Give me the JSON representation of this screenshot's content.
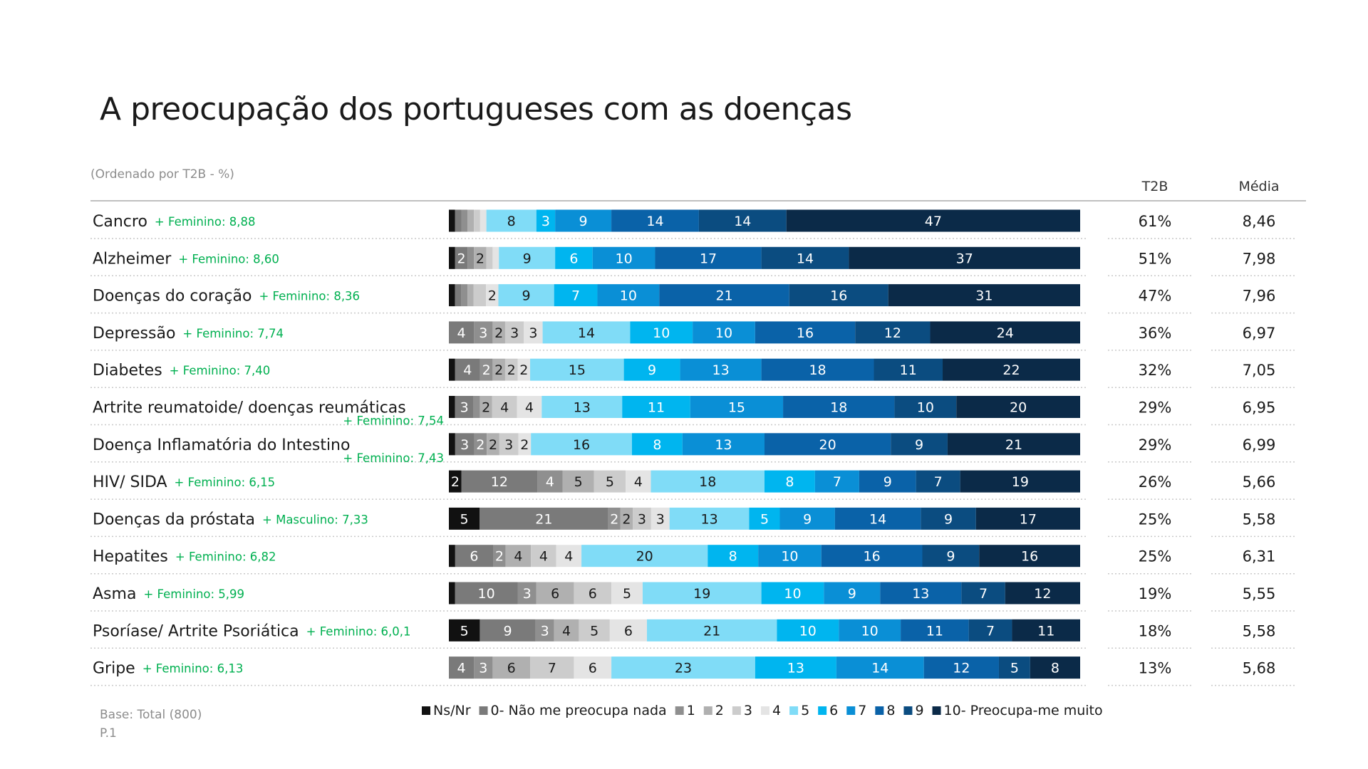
{
  "title": "A preocupação dos portugueses com as doenças",
  "subtitle": "(Ordenado por T2B - %)",
  "columns": {
    "t2b": "T2B",
    "media": "Média"
  },
  "footer": {
    "base": "Base: Total (800)",
    "question": "P.1"
  },
  "colors": {
    "green": "#00b050",
    "category": [
      "#111111",
      "#7a7a7a",
      "#8f8f8f",
      "#b0b0b0",
      "#cccccc",
      "#e4e4e4",
      "#80dcf7",
      "#00b5ef",
      "#0a8fd6",
      "#0a62a8",
      "#0b4c80",
      "#0b2a48"
    ]
  },
  "chart_data": {
    "type": "bar",
    "orientation": "horizontal",
    "stacked": true,
    "unit": "%",
    "categories": [
      "Ns/Nr",
      "0- Não me preocupa nada",
      "1",
      "2",
      "3",
      "4",
      "5",
      "6",
      "7",
      "8",
      "9",
      "10- Preocupa-me muito"
    ],
    "legend_position": "bottom",
    "rows": [
      {
        "label": "Cancro",
        "note": "+ Feminino: 8,88",
        "note_wrap": false,
        "t2b": "61%",
        "media": "8,46",
        "values": [
          1,
          1,
          1,
          1,
          1,
          1,
          8,
          3,
          9,
          14,
          14,
          47
        ],
        "labels": [
          "",
          "",
          "",
          "",
          "",
          "",
          "8",
          "3",
          "9",
          "14",
          "14",
          "47"
        ]
      },
      {
        "label": "Alzheimer",
        "note": "+ Feminino: 8,60",
        "note_wrap": false,
        "t2b": "51%",
        "media": "7,98",
        "values": [
          1,
          2,
          1,
          2,
          1,
          1,
          9,
          6,
          10,
          17,
          14,
          37
        ],
        "labels": [
          "",
          "2",
          "",
          "2",
          "",
          "",
          "9",
          "6",
          "10",
          "17",
          "14",
          "37"
        ]
      },
      {
        "label": "Doenças do coração",
        "note": "+ Feminino: 8,36",
        "note_wrap": false,
        "t2b": "47%",
        "media": "7,96",
        "values": [
          1,
          1,
          1,
          1,
          2,
          2,
          9,
          7,
          10,
          21,
          16,
          31
        ],
        "labels": [
          "",
          "",
          "",
          "",
          "",
          "2",
          "9",
          "7",
          "10",
          "21",
          "16",
          "31"
        ]
      },
      {
        "label": "Depressão",
        "note": "+ Feminino: 7,74",
        "note_wrap": false,
        "t2b": "36%",
        "media": "6,97",
        "values": [
          0,
          4,
          3,
          2,
          3,
          3,
          14,
          10,
          10,
          16,
          12,
          24
        ],
        "labels": [
          "",
          "4",
          "3",
          "2",
          "3",
          "3",
          "14",
          "10",
          "10",
          "16",
          "12",
          "24"
        ]
      },
      {
        "label": "Diabetes",
        "note": "+ Feminino: 7,40",
        "note_wrap": false,
        "t2b": "32%",
        "media": "7,05",
        "values": [
          1,
          4,
          2,
          2,
          2,
          2,
          15,
          9,
          13,
          18,
          11,
          22
        ],
        "labels": [
          "",
          "4",
          "2",
          "2",
          "2",
          "2",
          "15",
          "9",
          "13",
          "18",
          "11",
          "22"
        ]
      },
      {
        "label": "Artrite reumatoide/ doenças reumáticas",
        "note": "+ Feminino: 7,54",
        "note_wrap": true,
        "t2b": "29%",
        "media": "6,95",
        "values": [
          1,
          3,
          1,
          2,
          4,
          4,
          13,
          11,
          15,
          18,
          10,
          20
        ],
        "labels": [
          "",
          "3",
          "",
          "2",
          "4",
          "4",
          "13",
          "11",
          "15",
          "18",
          "10",
          "20"
        ]
      },
      {
        "label": "Doença Inflamatória do Intestino",
        "note": "+ Feminino: 7,43",
        "note_wrap": true,
        "t2b": "29%",
        "media": "6,99",
        "values": [
          1,
          3,
          2,
          2,
          3,
          2,
          16,
          8,
          13,
          20,
          9,
          21
        ],
        "labels": [
          "",
          "3",
          "2",
          "2",
          "3",
          "2",
          "16",
          "8",
          "13",
          "20",
          "9",
          "21"
        ]
      },
      {
        "label": "HIV/ SIDA",
        "note": "+ Feminino: 6,15",
        "note_wrap": false,
        "t2b": "26%",
        "media": "5,66",
        "values": [
          2,
          12,
          4,
          5,
          5,
          4,
          18,
          8,
          7,
          9,
          7,
          19
        ],
        "labels": [
          "2",
          "12",
          "4",
          "5",
          "5",
          "4",
          "18",
          "8",
          "7",
          "9",
          "7",
          "19"
        ]
      },
      {
        "label": "Doenças da próstata",
        "note": "+ Masculino: 7,33",
        "note_wrap": false,
        "t2b": "25%",
        "media": "5,58",
        "values": [
          5,
          21,
          2,
          2,
          3,
          3,
          13,
          5,
          9,
          14,
          9,
          17
        ],
        "labels": [
          "5",
          "21",
          "2",
          "2",
          "3",
          "3",
          "13",
          "5",
          "9",
          "14",
          "9",
          "17"
        ]
      },
      {
        "label": "Hepatites",
        "note": "+ Feminino: 6,82",
        "note_wrap": false,
        "t2b": "25%",
        "media": "6,31",
        "values": [
          1,
          6,
          2,
          4,
          4,
          4,
          20,
          8,
          10,
          16,
          9,
          16
        ],
        "labels": [
          "",
          "6",
          "2",
          "4",
          "4",
          "4",
          "20",
          "8",
          "10",
          "16",
          "9",
          "16"
        ]
      },
      {
        "label": "Asma",
        "note": "+ Feminino: 5,99",
        "note_wrap": false,
        "t2b": "19%",
        "media": "5,55",
        "values": [
          1,
          10,
          3,
          6,
          6,
          5,
          19,
          10,
          9,
          13,
          7,
          12
        ],
        "labels": [
          "",
          "10",
          "3",
          "6",
          "6",
          "5",
          "19",
          "10",
          "9",
          "13",
          "7",
          "12"
        ]
      },
      {
        "label": "Psoríase/ Artrite Psoriática",
        "note": "+ Feminino: 6,0,1",
        "note_wrap": false,
        "t2b": "18%",
        "media": "5,58",
        "values": [
          5,
          9,
          3,
          4,
          5,
          6,
          21,
          10,
          10,
          11,
          7,
          11
        ],
        "labels": [
          "5",
          "9",
          "3",
          "4",
          "5",
          "6",
          "21",
          "10",
          "10",
          "11",
          "7",
          "11"
        ]
      },
      {
        "label": "Gripe",
        "note": "+ Feminino: 6,13",
        "note_wrap": false,
        "t2b": "13%",
        "media": "5,68",
        "values": [
          0,
          4,
          3,
          6,
          7,
          6,
          23,
          13,
          14,
          12,
          5,
          8
        ],
        "labels": [
          "",
          "4",
          "3",
          "6",
          "7",
          "6",
          "23",
          "13",
          "14",
          "12",
          "5",
          "8"
        ]
      }
    ]
  }
}
